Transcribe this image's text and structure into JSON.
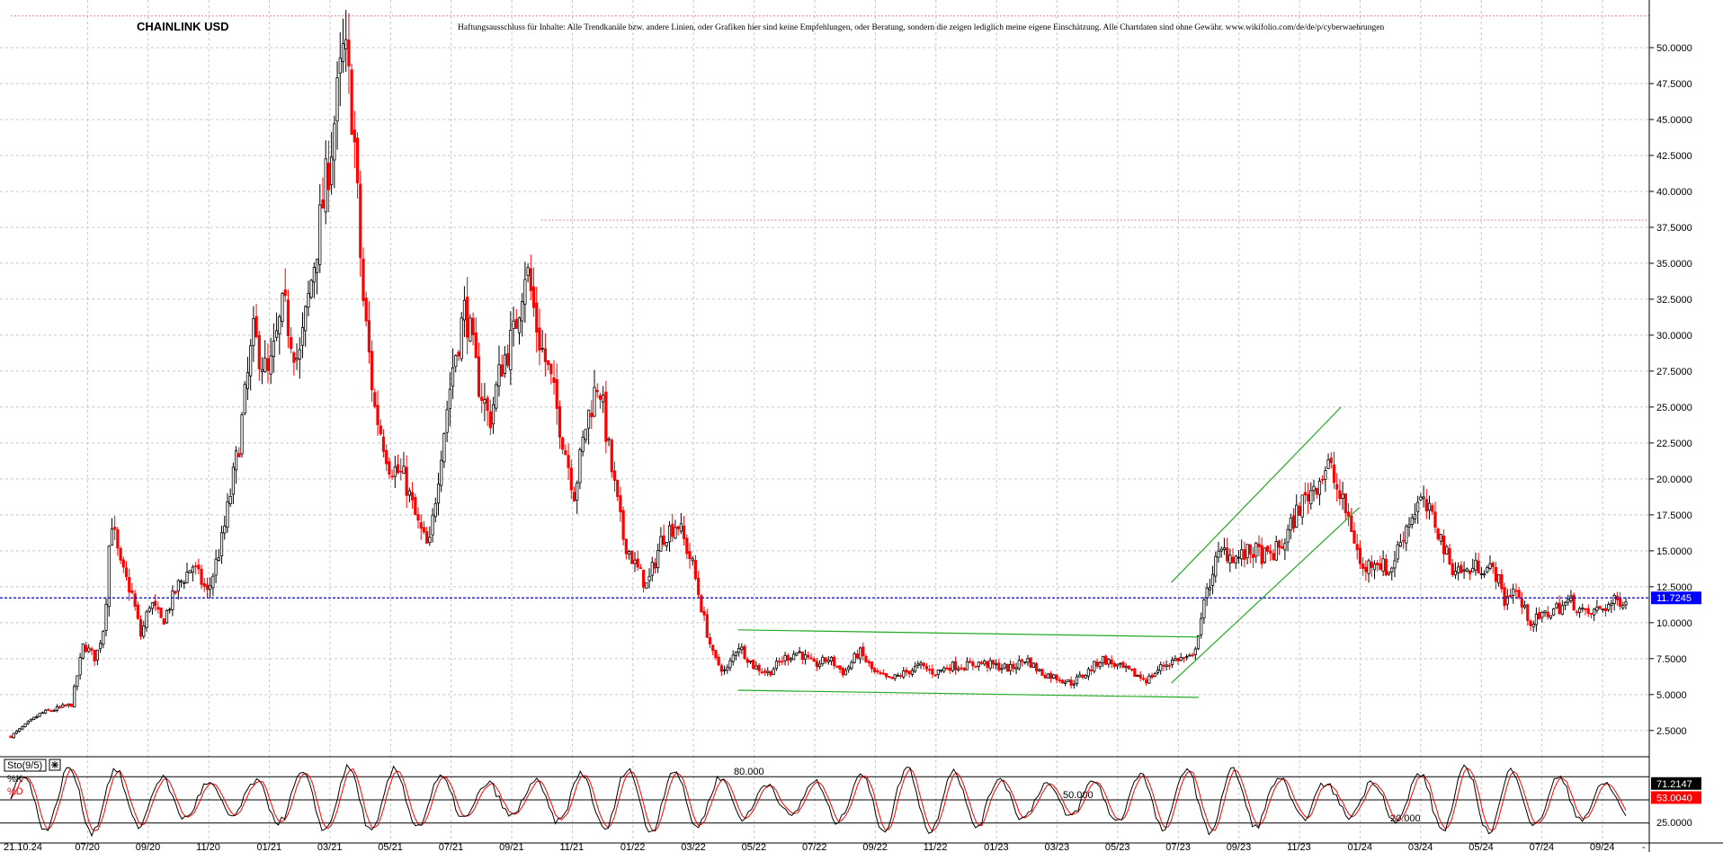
{
  "chart_data": {
    "type": "candlestick",
    "title": "CHAINLINK USD",
    "disclaimer": "Haftungsausschluss für Inhalte: Alle Trendkanäle bzw. andere Linien, oder Grafiken hier sind keine Empfehlungen, oder Beratung, sondern die zeigen lediglich meine eigene Einschätzung. Alle Chartdaten sind ohne Gewähr.  www.wikifolio.com/de/de/p/cyberwaehrungen",
    "ylim": [
      0.8,
      53.0
    ],
    "y_ticks": [
      "2.5000",
      "5.0000",
      "7.5000",
      "10.0000",
      "12.5000",
      "15.0000",
      "17.5000",
      "20.0000",
      "22.5000",
      "25.0000",
      "27.5000",
      "30.0000",
      "32.5000",
      "35.0000",
      "37.5000",
      "40.0000",
      "42.5000",
      "45.0000",
      "47.5000",
      "50.0000"
    ],
    "x_ticks": [
      "21.10.24",
      "07/20",
      "09/20",
      "11/20",
      "01/21",
      "03/21",
      "05/21",
      "07/21",
      "09/21",
      "11/21",
      "01/22",
      "03/22",
      "05/22",
      "07/22",
      "09/22",
      "11/22",
      "01/23",
      "03/23",
      "05/23",
      "07/23",
      "09/23",
      "11/23",
      "01/24",
      "03/24",
      "05/24",
      "07/24",
      "09/24"
    ],
    "x_range_months": [
      0,
      53.3
    ],
    "price_path": [
      [
        0.0,
        2.1
      ],
      [
        1.0,
        3.7
      ],
      [
        2.0,
        4.3
      ],
      [
        2.4,
        8.5
      ],
      [
        2.8,
        7.5
      ],
      [
        3.1,
        10.0
      ],
      [
        3.3,
        17.5
      ],
      [
        3.6,
        14.0
      ],
      [
        4.0,
        12.0
      ],
      [
        4.3,
        9.0
      ],
      [
        4.6,
        11.5
      ],
      [
        5.0,
        10.0
      ],
      [
        5.5,
        12.5
      ],
      [
        6.0,
        14.0
      ],
      [
        6.5,
        12.0
      ],
      [
        7.0,
        16.0
      ],
      [
        7.5,
        22.0
      ],
      [
        8.0,
        30.0
      ],
      [
        8.5,
        27.0
      ],
      [
        9.0,
        32.0
      ],
      [
        9.5,
        28.0
      ],
      [
        10.0,
        35.0
      ],
      [
        10.5,
        42.0
      ],
      [
        11.0,
        50.0
      ],
      [
        11.3,
        45.0
      ],
      [
        11.6,
        33.0
      ],
      [
        12.0,
        25.0
      ],
      [
        12.5,
        21.0
      ],
      [
        13.0,
        20.0
      ],
      [
        13.4,
        17.0
      ],
      [
        13.8,
        15.0
      ],
      [
        14.2,
        22.0
      ],
      [
        14.6,
        28.0
      ],
      [
        15.0,
        32.0
      ],
      [
        15.4,
        27.0
      ],
      [
        15.8,
        24.0
      ],
      [
        16.2,
        28.0
      ],
      [
        16.6,
        30.0
      ],
      [
        17.0,
        35.0
      ],
      [
        17.4,
        30.0
      ],
      [
        17.8,
        27.0
      ],
      [
        18.2,
        23.0
      ],
      [
        18.6,
        19.0
      ],
      [
        19.0,
        24.0
      ],
      [
        19.4,
        27.0
      ],
      [
        19.8,
        21.0
      ],
      [
        20.2,
        16.0
      ],
      [
        20.6,
        14.0
      ],
      [
        21.0,
        12.5
      ],
      [
        21.5,
        16.0
      ],
      [
        22.0,
        17.0
      ],
      [
        22.5,
        14.0
      ],
      [
        22.9,
        10.0
      ],
      [
        23.2,
        7.5
      ],
      [
        23.6,
        6.5
      ],
      [
        24.0,
        8.5
      ],
      [
        24.5,
        7.0
      ],
      [
        25.0,
        6.5
      ],
      [
        25.5,
        7.5
      ],
      [
        26.0,
        8.0
      ],
      [
        26.5,
        7.0
      ],
      [
        27.0,
        7.5
      ],
      [
        27.5,
        6.5
      ],
      [
        28.0,
        8.0
      ],
      [
        28.5,
        6.5
      ],
      [
        29.0,
        6.0
      ],
      [
        29.5,
        6.5
      ],
      [
        30.0,
        7.0
      ],
      [
        30.5,
        6.5
      ],
      [
        31.0,
        7.0
      ],
      [
        31.5,
        7.0
      ],
      [
        32.0,
        7.2
      ],
      [
        32.5,
        7.0
      ],
      [
        33.0,
        6.8
      ],
      [
        33.5,
        7.5
      ],
      [
        34.0,
        6.5
      ],
      [
        34.5,
        6.2
      ],
      [
        35.0,
        5.8
      ],
      [
        35.5,
        6.5
      ],
      [
        36.0,
        7.5
      ],
      [
        36.5,
        7.0
      ],
      [
        37.0,
        6.5
      ],
      [
        37.5,
        6.0
      ],
      [
        38.0,
        7.0
      ],
      [
        38.5,
        7.5
      ],
      [
        39.0,
        7.5
      ],
      [
        39.3,
        10.5
      ],
      [
        39.7,
        14.0
      ],
      [
        40.0,
        15.0
      ],
      [
        40.5,
        14.5
      ],
      [
        41.0,
        15.0
      ],
      [
        41.5,
        14.5
      ],
      [
        42.0,
        15.5
      ],
      [
        42.5,
        18.0
      ],
      [
        43.0,
        19.5
      ],
      [
        43.5,
        21.0
      ],
      [
        43.8,
        19.0
      ],
      [
        44.2,
        17.0
      ],
      [
        44.6,
        13.5
      ],
      [
        45.0,
        14.5
      ],
      [
        45.5,
        13.5
      ],
      [
        46.0,
        16.5
      ],
      [
        46.5,
        18.5
      ],
      [
        47.0,
        17.0
      ],
      [
        47.5,
        14.0
      ],
      [
        48.0,
        13.5
      ],
      [
        48.5,
        14.0
      ],
      [
        49.0,
        13.5
      ],
      [
        49.3,
        11.5
      ],
      [
        49.6,
        12.5
      ],
      [
        49.9,
        11.0
      ],
      [
        50.2,
        10.0
      ],
      [
        50.6,
        10.5
      ],
      [
        51.0,
        11.0
      ],
      [
        51.5,
        11.5
      ],
      [
        52.0,
        10.5
      ],
      [
        52.5,
        11.0
      ],
      [
        53.0,
        11.5
      ],
      [
        53.3,
        11.72
      ]
    ],
    "current_price": "11.7245",
    "reference_lines": [
      {
        "name": "resistance",
        "y": 38.0,
        "x_start_month": 17.5,
        "style": "dotted",
        "color": "#e08080"
      },
      {
        "name": "top-border",
        "y": 52.2,
        "x_start_month": 0,
        "style": "dotted",
        "color": "#e08080"
      }
    ],
    "trend_channels": [
      {
        "name": "sideways-channel",
        "upper": [
          [
            24.0,
            9.5
          ],
          [
            39.2,
            9.0
          ]
        ],
        "lower": [
          [
            24.0,
            5.3
          ],
          [
            39.2,
            4.8
          ]
        ],
        "color": "#22aa22"
      },
      {
        "name": "rising-channel",
        "upper": [
          [
            38.3,
            12.8
          ],
          [
            43.9,
            25.0
          ]
        ],
        "lower": [
          [
            38.3,
            5.8
          ],
          [
            44.5,
            18.0
          ]
        ],
        "color": "#22aa22"
      }
    ],
    "indicator": {
      "label": "Sto(9/5)",
      "k_label": "%K",
      "d_label": "%D",
      "k_value": "71.2147",
      "d_value": "53.0040",
      "levels": [
        "80.000",
        "50.000",
        "20.000"
      ],
      "level_values": [
        80,
        50,
        20
      ],
      "axis_tick": "25.0000"
    },
    "colors": {
      "bull": "#000000",
      "bear": "#ff0000",
      "grid": "#c8c8c8",
      "price_line": "#0000cc",
      "current_badge_bg": "#0000ff",
      "k_line": "#000000",
      "d_line": "#ff0000",
      "k_badge_bg": "#000000",
      "d_badge_bg": "#ff0000",
      "channel": "#22aa22"
    }
  }
}
